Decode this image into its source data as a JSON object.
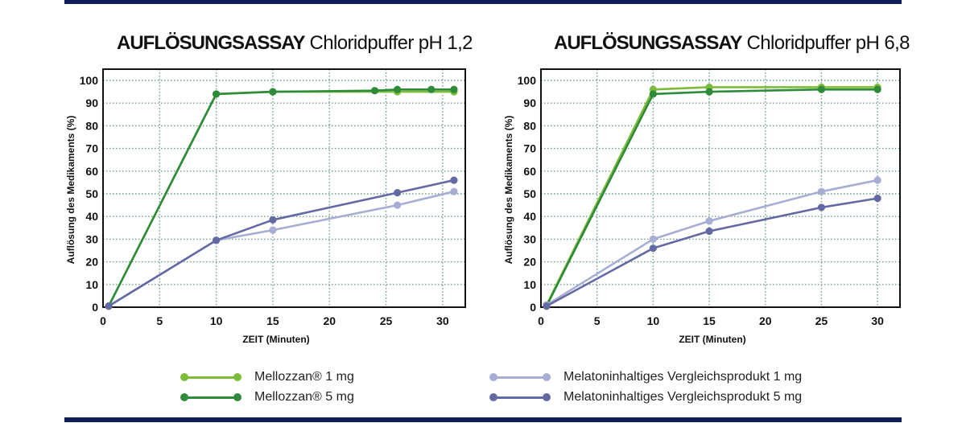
{
  "chart_data": [
    {
      "type": "line",
      "title_bold": "AUFLÖSUNGSASSAY",
      "title_rest": " Chloridpuffer pH 1,2",
      "xlabel": "ZEIT (Minuten)",
      "ylabel": "Auflösung des Medikaments (%)",
      "xlim": [
        0,
        32
      ],
      "ylim": [
        0,
        100
      ],
      "xticks": [
        0,
        5,
        10,
        15,
        20,
        25,
        30
      ],
      "yticks": [
        0,
        10,
        20,
        30,
        40,
        50,
        60,
        70,
        80,
        90,
        100
      ],
      "grid": true,
      "series": [
        {
          "name": "Mellozzan® 1 mg",
          "color": "#7dbb3a",
          "x": [
            0.5,
            10,
            15,
            26,
            31
          ],
          "y": [
            0.5,
            94,
            95,
            95,
            95
          ]
        },
        {
          "name": "Mellozzan® 5 mg",
          "color": "#2e8b3a",
          "x": [
            0.5,
            10,
            15,
            24,
            26,
            29,
            31
          ],
          "y": [
            0.5,
            94,
            95,
            95.5,
            96,
            96,
            96
          ]
        },
        {
          "name": "Melatoninhaltiges Vergleichsprodukt 1 mg",
          "color": "#a6aed3",
          "x": [
            0.5,
            10,
            15,
            26,
            31
          ],
          "y": [
            0.5,
            29.5,
            34,
            45,
            51
          ]
        },
        {
          "name": "Melatoninhaltiges Vergleichsprodukt 5 mg",
          "color": "#636aa3",
          "x": [
            0.5,
            10,
            15,
            26,
            31
          ],
          "y": [
            0.5,
            29.5,
            38.5,
            50.5,
            56
          ]
        }
      ]
    },
    {
      "type": "line",
      "title_bold": "AUFLÖSUNGSASSAY",
      "title_rest": " Chloridpuffer pH 6,8",
      "xlabel": "ZEIT (Minuten)",
      "ylabel": "Auflösung des Medikaments (%)",
      "xlim": [
        0,
        32
      ],
      "ylim": [
        0,
        100
      ],
      "xticks": [
        0,
        5,
        10,
        15,
        20,
        25,
        30
      ],
      "yticks": [
        0,
        10,
        20,
        30,
        40,
        50,
        60,
        70,
        80,
        90,
        100
      ],
      "grid": true,
      "series": [
        {
          "name": "Mellozzan® 1 mg",
          "color": "#7dbb3a",
          "x": [
            0.5,
            10,
            15,
            25,
            30
          ],
          "y": [
            1,
            96,
            97,
            97,
            97
          ]
        },
        {
          "name": "Mellozzan® 5 mg",
          "color": "#2e8b3a",
          "x": [
            0.5,
            10,
            15,
            25,
            30
          ],
          "y": [
            0.5,
            94,
            95,
            96,
            96
          ]
        },
        {
          "name": "Melatoninhaltiges Vergleichsprodukt 1 mg",
          "color": "#a6aed3",
          "x": [
            0.5,
            10,
            15,
            25,
            30
          ],
          "y": [
            1,
            30,
            38,
            51,
            56
          ]
        },
        {
          "name": "Melatoninhaltiges Vergleichsprodukt 5 mg",
          "color": "#636aa3",
          "x": [
            0.5,
            10,
            15,
            25,
            30
          ],
          "y": [
            0.5,
            26,
            33.5,
            44,
            48
          ]
        }
      ]
    }
  ],
  "legend": [
    {
      "label": "Mellozzan® 1 mg",
      "color": "#7dbb3a"
    },
    {
      "label": "Mellozzan® 5 mg",
      "color": "#2e8b3a"
    },
    {
      "label": "Melatoninhaltiges Vergleichsprodukt 1 mg",
      "color": "#a6aed3"
    },
    {
      "label": "Melatoninhaltiges Vergleichsprodukt 5 mg",
      "color": "#636aa3"
    }
  ],
  "colors": {
    "rule": "#0f1d5a",
    "grid": "#6f9e86",
    "axis": "#111111"
  }
}
